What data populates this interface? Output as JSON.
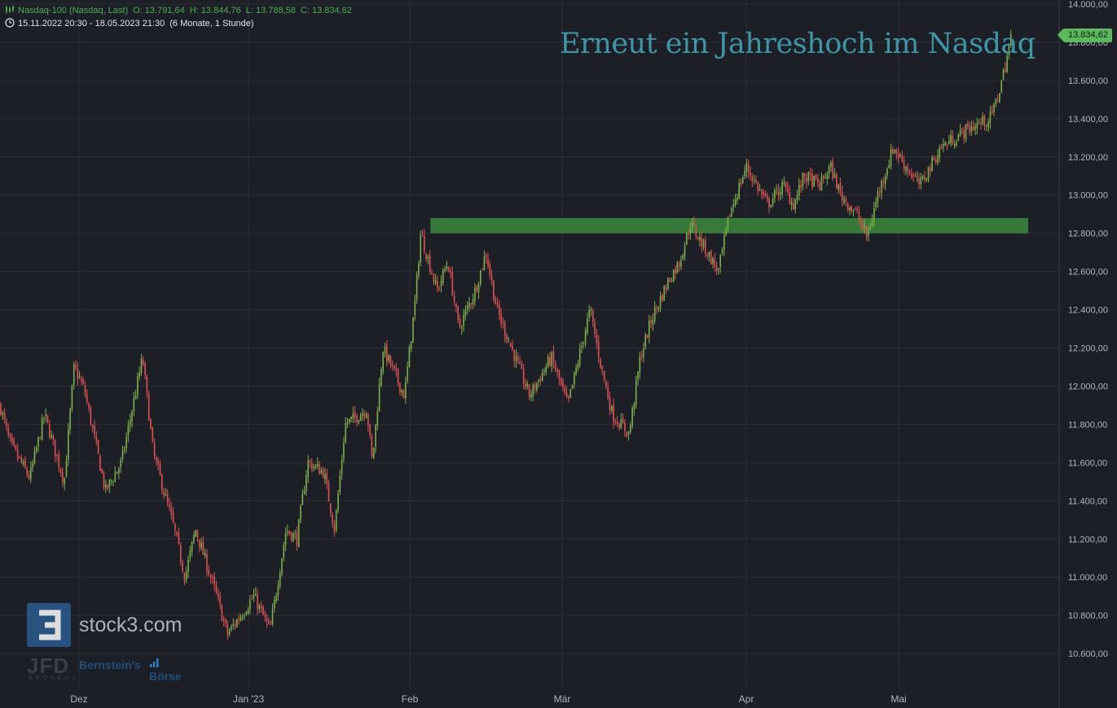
{
  "header": {
    "instrument": "Nasdaq-100 (Nasdaq, Last)",
    "open": "O: 13.791,64",
    "high": "H: 13.844,76",
    "low": "L: 13.788,58",
    "close": "C: 13.834,62",
    "range": "15.11.2022 20:30 - 18.05.2023 21:30",
    "period": "(6 Monate, 1 Stunde)"
  },
  "annotation": {
    "title": "Erneut ein Jahreshoch im Nasdaq"
  },
  "last_price_label": "13.834,62",
  "branding": {
    "logo_text": "stock3.com",
    "partner_jfd": "JFD",
    "partner_jfd_sub": "BROKERS",
    "partner_bernstein": "Bernstein's",
    "partner_boerse": "Börse"
  },
  "colors": {
    "background": "#1c1f26",
    "grid": "#2b2f38",
    "up_candle": "#7fb04a",
    "down_candle": "#e05252",
    "zone": "#3c8a3c",
    "title": "#3f97a6",
    "price_label": "#5cb85c"
  },
  "chart_data": {
    "type": "candlestick",
    "title": "Erneut ein Jahreshoch im Nasdaq",
    "interval": "1 Stunde",
    "x_ticks": [
      "Dez",
      "Jan '23",
      "Feb",
      "Mär",
      "Apr",
      "Mai"
    ],
    "y_ticks": [
      "10.600,00",
      "10.800,00",
      "11.000,00",
      "11.200,00",
      "11.400,00",
      "11.600,00",
      "11.800,00",
      "12.000,00",
      "12.200,00",
      "12.400,00",
      "12.600,00",
      "12.800,00",
      "13.000,00",
      "13.200,00",
      "13.400,00",
      "13.600,00",
      "13.800,00",
      "14.000,00"
    ],
    "y_tick_values": [
      10600,
      10800,
      11000,
      11200,
      11400,
      11600,
      11800,
      12000,
      12200,
      12400,
      12600,
      12800,
      13000,
      13200,
      13400,
      13600,
      13800,
      14000
    ],
    "ylim": [
      10430,
      14000
    ],
    "grid": true,
    "last_close": 13834.62,
    "zone": {
      "from": 12800,
      "to": 12880,
      "start": "2023-02-03",
      "end": "2023-05-25"
    },
    "price_path": [
      [
        "2022-11-15",
        11900
      ],
      [
        "2022-11-17",
        11700
      ],
      [
        "2022-11-21",
        11520
      ],
      [
        "2022-11-24",
        11850
      ],
      [
        "2022-11-28",
        11500
      ],
      [
        "2022-11-30",
        12100
      ],
      [
        "2022-12-02",
        11980
      ],
      [
        "2022-12-06",
        11450
      ],
      [
        "2022-12-09",
        11600
      ],
      [
        "2022-12-13",
        12150
      ],
      [
        "2022-12-15",
        11650
      ],
      [
        "2022-12-19",
        11250
      ],
      [
        "2022-12-21",
        11000
      ],
      [
        "2022-12-23",
        11250
      ],
      [
        "2022-12-27",
        10900
      ],
      [
        "2022-12-29",
        10700
      ],
      [
        "2023-01-03",
        10900
      ],
      [
        "2023-01-06",
        10720
      ],
      [
        "2023-01-09",
        11250
      ],
      [
        "2023-01-11",
        11200
      ],
      [
        "2023-01-13",
        11600
      ],
      [
        "2023-01-16",
        11550
      ],
      [
        "2023-01-18",
        11250
      ],
      [
        "2023-01-20",
        11800
      ],
      [
        "2023-01-24",
        11880
      ],
      [
        "2023-01-25",
        11600
      ],
      [
        "2023-01-27",
        12200
      ],
      [
        "2023-01-31",
        11950
      ],
      [
        "2023-02-02",
        12450
      ],
      [
        "2023-02-03",
        12800
      ],
      [
        "2023-02-06",
        12500
      ],
      [
        "2023-02-08",
        12650
      ],
      [
        "2023-02-10",
        12300
      ],
      [
        "2023-02-13",
        12500
      ],
      [
        "2023-02-15",
        12700
      ],
      [
        "2023-02-17",
        12400
      ],
      [
        "2023-02-21",
        12100
      ],
      [
        "2023-02-23",
        11950
      ],
      [
        "2023-02-27",
        12150
      ],
      [
        "2023-03-02",
        11900
      ],
      [
        "2023-03-06",
        12400
      ],
      [
        "2023-03-08",
        12100
      ],
      [
        "2023-03-10",
        11850
      ],
      [
        "2023-03-13",
        11750
      ],
      [
        "2023-03-15",
        12150
      ],
      [
        "2023-03-17",
        12350
      ],
      [
        "2023-03-20",
        12550
      ],
      [
        "2023-03-22",
        12650
      ],
      [
        "2023-03-24",
        12850
      ],
      [
        "2023-03-27",
        12700
      ],
      [
        "2023-03-29",
        12600
      ],
      [
        "2023-03-31",
        12900
      ],
      [
        "2023-04-03",
        13150
      ],
      [
        "2023-04-05",
        13050
      ],
      [
        "2023-04-07",
        12950
      ],
      [
        "2023-04-10",
        13050
      ],
      [
        "2023-04-12",
        12950
      ],
      [
        "2023-04-14",
        13100
      ],
      [
        "2023-04-17",
        13050
      ],
      [
        "2023-04-19",
        13150
      ],
      [
        "2023-04-21",
        13000
      ],
      [
        "2023-04-24",
        12900
      ],
      [
        "2023-04-26",
        12780
      ],
      [
        "2023-04-28",
        13000
      ],
      [
        "2023-05-01",
        13250
      ],
      [
        "2023-05-03",
        13150
      ],
      [
        "2023-05-05",
        13050
      ],
      [
        "2023-05-08",
        13250
      ],
      [
        "2023-05-10",
        13300
      ],
      [
        "2023-05-12",
        13350
      ],
      [
        "2023-05-15",
        13400
      ],
      [
        "2023-05-16",
        13500
      ],
      [
        "2023-05-17",
        13650
      ],
      [
        "2023-05-18",
        13834.62
      ]
    ]
  }
}
